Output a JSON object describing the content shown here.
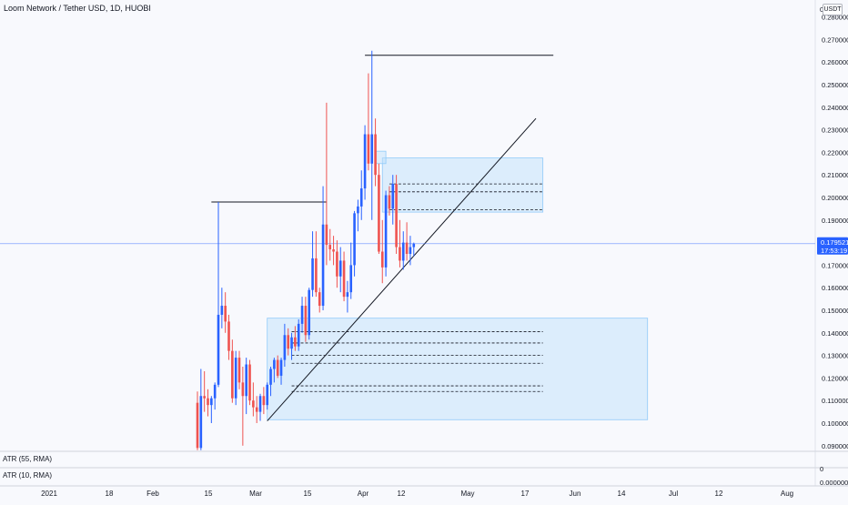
{
  "header": {
    "title": "Loom Network / Tether USD, 1D, HUOBI",
    "unit": "USDT"
  },
  "indicators": [
    {
      "label": "ATR (55, RMA)"
    },
    {
      "label": "ATR (10, RMA)"
    }
  ],
  "price_axis": {
    "labels": [
      "0.280000",
      "0.270000",
      "0.260000",
      "0.250000",
      "0.240000",
      "0.230000",
      "0.220000",
      "0.210000",
      "0.200000",
      "0.190000",
      "0.170000",
      "0.160000",
      "0.150000",
      "0.140000",
      "0.130000",
      "0.120000",
      "0.110000",
      "0.100000",
      "0.090000"
    ],
    "top_zero": "0",
    "sub_zero": "0",
    "sub_bottom": "0.000000"
  },
  "last_price": {
    "value": 0.179521,
    "label": "0.179521",
    "countdown": "17:53:19"
  },
  "time_axis": {
    "labels": [
      "2021",
      "18",
      "Feb",
      "15",
      "Mar",
      "15",
      "Apr",
      "12",
      "May",
      "17",
      "Jun",
      "14",
      "Jul",
      "12",
      "Aug"
    ]
  },
  "colors": {
    "up": "#2962ff",
    "down": "#ef5350",
    "zone_fill": "#bbdefb",
    "zone_border": "#90caf9",
    "price_badge": "#2962ff",
    "line": "#131722"
  },
  "chart_data": {
    "type": "candlestick",
    "title": "Loom Network / Tether USD, 1D, HUOBI",
    "ylim": [
      0.0875,
      0.2875
    ],
    "x_start": "2021-02-09",
    "candles": [
      {
        "date": "2021-02-09",
        "open": 0.109,
        "high": 0.114,
        "low": 0.088,
        "close": 0.089
      },
      {
        "date": "2021-02-10",
        "open": 0.089,
        "high": 0.124,
        "low": 0.088,
        "close": 0.112
      },
      {
        "date": "2021-02-11",
        "open": 0.112,
        "high": 0.123,
        "low": 0.105,
        "close": 0.111
      },
      {
        "date": "2021-02-12",
        "open": 0.111,
        "high": 0.115,
        "low": 0.103,
        "close": 0.108
      },
      {
        "date": "2021-02-13",
        "open": 0.108,
        "high": 0.112,
        "low": 0.1,
        "close": 0.111
      },
      {
        "date": "2021-02-14",
        "open": 0.111,
        "high": 0.118,
        "low": 0.106,
        "close": 0.117
      },
      {
        "date": "2021-02-15",
        "open": 0.117,
        "high": 0.198,
        "low": 0.116,
        "close": 0.148
      },
      {
        "date": "2021-02-16",
        "open": 0.148,
        "high": 0.16,
        "low": 0.142,
        "close": 0.152
      },
      {
        "date": "2021-02-17",
        "open": 0.152,
        "high": 0.158,
        "low": 0.14,
        "close": 0.145
      },
      {
        "date": "2021-02-18",
        "open": 0.145,
        "high": 0.148,
        "low": 0.128,
        "close": 0.132
      },
      {
        "date": "2021-02-19",
        "open": 0.132,
        "high": 0.137,
        "low": 0.109,
        "close": 0.111
      },
      {
        "date": "2021-02-20",
        "open": 0.111,
        "high": 0.132,
        "low": 0.108,
        "close": 0.129
      },
      {
        "date": "2021-02-21",
        "open": 0.129,
        "high": 0.132,
        "low": 0.115,
        "close": 0.118
      },
      {
        "date": "2021-02-22",
        "open": 0.118,
        "high": 0.125,
        "low": 0.09,
        "close": 0.112
      },
      {
        "date": "2021-02-23",
        "open": 0.112,
        "high": 0.129,
        "low": 0.104,
        "close": 0.126
      },
      {
        "date": "2021-02-24",
        "open": 0.126,
        "high": 0.128,
        "low": 0.108,
        "close": 0.11
      },
      {
        "date": "2021-02-25",
        "open": 0.11,
        "high": 0.118,
        "low": 0.103,
        "close": 0.107
      },
      {
        "date": "2021-02-26",
        "open": 0.107,
        "high": 0.112,
        "low": 0.1,
        "close": 0.105
      },
      {
        "date": "2021-02-27",
        "open": 0.105,
        "high": 0.113,
        "low": 0.101,
        "close": 0.112
      },
      {
        "date": "2021-02-28",
        "open": 0.112,
        "high": 0.116,
        "low": 0.104,
        "close": 0.108
      },
      {
        "date": "2021-03-01",
        "open": 0.108,
        "high": 0.118,
        "low": 0.106,
        "close": 0.117
      },
      {
        "date": "2021-03-02",
        "open": 0.117,
        "high": 0.125,
        "low": 0.112,
        "close": 0.124
      },
      {
        "date": "2021-03-03",
        "open": 0.124,
        "high": 0.129,
        "low": 0.118,
        "close": 0.128
      },
      {
        "date": "2021-03-04",
        "open": 0.128,
        "high": 0.13,
        "low": 0.12,
        "close": 0.121
      },
      {
        "date": "2021-03-05",
        "open": 0.121,
        "high": 0.129,
        "low": 0.117,
        "close": 0.128
      },
      {
        "date": "2021-03-06",
        "open": 0.128,
        "high": 0.144,
        "low": 0.125,
        "close": 0.139
      },
      {
        "date": "2021-03-07",
        "open": 0.139,
        "high": 0.142,
        "low": 0.13,
        "close": 0.133
      },
      {
        "date": "2021-03-08",
        "open": 0.133,
        "high": 0.14,
        "low": 0.128,
        "close": 0.138
      },
      {
        "date": "2021-03-09",
        "open": 0.138,
        "high": 0.143,
        "low": 0.132,
        "close": 0.134
      },
      {
        "date": "2021-03-10",
        "open": 0.134,
        "high": 0.146,
        "low": 0.132,
        "close": 0.144
      },
      {
        "date": "2021-03-11",
        "open": 0.144,
        "high": 0.156,
        "low": 0.14,
        "close": 0.152
      },
      {
        "date": "2021-03-12",
        "open": 0.152,
        "high": 0.156,
        "low": 0.136,
        "close": 0.139
      },
      {
        "date": "2021-03-13",
        "open": 0.139,
        "high": 0.16,
        "low": 0.137,
        "close": 0.159
      },
      {
        "date": "2021-03-14",
        "open": 0.159,
        "high": 0.185,
        "low": 0.156,
        "close": 0.173
      },
      {
        "date": "2021-03-15",
        "open": 0.173,
        "high": 0.185,
        "low": 0.156,
        "close": 0.158
      },
      {
        "date": "2021-03-16",
        "open": 0.158,
        "high": 0.16,
        "low": 0.149,
        "close": 0.152
      },
      {
        "date": "2021-03-17",
        "open": 0.152,
        "high": 0.205,
        "low": 0.15,
        "close": 0.188
      },
      {
        "date": "2021-03-18",
        "open": 0.188,
        "high": 0.242,
        "low": 0.17,
        "close": 0.179
      },
      {
        "date": "2021-03-19",
        "open": 0.179,
        "high": 0.186,
        "low": 0.172,
        "close": 0.177
      },
      {
        "date": "2021-03-20",
        "open": 0.177,
        "high": 0.183,
        "low": 0.17,
        "close": 0.176
      },
      {
        "date": "2021-03-21",
        "open": 0.176,
        "high": 0.181,
        "low": 0.16,
        "close": 0.165
      },
      {
        "date": "2021-03-22",
        "open": 0.165,
        "high": 0.178,
        "low": 0.158,
        "close": 0.172
      },
      {
        "date": "2021-03-23",
        "open": 0.172,
        "high": 0.176,
        "low": 0.154,
        "close": 0.156
      },
      {
        "date": "2021-03-24",
        "open": 0.156,
        "high": 0.163,
        "low": 0.149,
        "close": 0.158
      },
      {
        "date": "2021-03-25",
        "open": 0.158,
        "high": 0.18,
        "low": 0.155,
        "close": 0.17
      },
      {
        "date": "2021-03-26",
        "open": 0.17,
        "high": 0.194,
        "low": 0.165,
        "close": 0.193
      },
      {
        "date": "2021-03-27",
        "open": 0.193,
        "high": 0.199,
        "low": 0.185,
        "close": 0.196
      },
      {
        "date": "2021-03-28",
        "open": 0.196,
        "high": 0.212,
        "low": 0.19,
        "close": 0.204
      },
      {
        "date": "2021-03-29",
        "open": 0.204,
        "high": 0.232,
        "low": 0.199,
        "close": 0.228
      },
      {
        "date": "2021-03-30",
        "open": 0.228,
        "high": 0.255,
        "low": 0.212,
        "close": 0.215
      },
      {
        "date": "2021-03-31",
        "open": 0.215,
        "high": 0.265,
        "low": 0.19,
        "close": 0.228
      },
      {
        "date": "2021-04-01",
        "open": 0.228,
        "high": 0.235,
        "low": 0.205,
        "close": 0.21
      },
      {
        "date": "2021-04-02",
        "open": 0.21,
        "high": 0.215,
        "low": 0.175,
        "close": 0.176
      },
      {
        "date": "2021-04-03",
        "open": 0.176,
        "high": 0.19,
        "low": 0.162,
        "close": 0.169
      },
      {
        "date": "2021-04-04",
        "open": 0.169,
        "high": 0.203,
        "low": 0.165,
        "close": 0.201
      },
      {
        "date": "2021-04-05",
        "open": 0.201,
        "high": 0.205,
        "low": 0.192,
        "close": 0.195
      },
      {
        "date": "2021-04-06",
        "open": 0.195,
        "high": 0.21,
        "low": 0.188,
        "close": 0.206
      },
      {
        "date": "2021-04-07",
        "open": 0.206,
        "high": 0.21,
        "low": 0.175,
        "close": 0.178
      },
      {
        "date": "2021-04-08",
        "open": 0.178,
        "high": 0.19,
        "low": 0.169,
        "close": 0.172
      },
      {
        "date": "2021-04-09",
        "open": 0.172,
        "high": 0.185,
        "low": 0.168,
        "close": 0.18
      },
      {
        "date": "2021-04-10",
        "open": 0.18,
        "high": 0.189,
        "low": 0.172,
        "close": 0.175
      },
      {
        "date": "2021-04-11",
        "open": 0.175,
        "high": 0.183,
        "low": 0.17,
        "close": 0.178
      },
      {
        "date": "2021-04-12",
        "open": 0.178,
        "high": 0.18,
        "low": 0.174,
        "close": 0.1795
      }
    ],
    "horizontal_lines": [
      {
        "price": 0.263,
        "from": "2021-03-29",
        "to": "2021-05-22"
      },
      {
        "price": 0.198,
        "from": "2021-02-13",
        "to": "2021-03-18"
      }
    ],
    "trend_line": {
      "from": {
        "date": "2021-03-01",
        "price": 0.101
      },
      "to": {
        "date": "2021-05-17",
        "price": 0.235
      }
    },
    "zones": [
      {
        "from": "2021-04-03",
        "to": "2021-05-19",
        "top": 0.2175,
        "bottom": 0.1935
      },
      {
        "from": "2021-04-01",
        "to": "2021-04-04",
        "top": 0.2205,
        "bottom": 0.215
      },
      {
        "from": "2021-03-01",
        "to": "2021-06-18",
        "top": 0.1465,
        "bottom": 0.1015
      }
    ],
    "dashed_levels": [
      {
        "price": 0.206,
        "from": "2021-04-05",
        "to": "2021-05-19"
      },
      {
        "price": 0.2025,
        "from": "2021-04-05",
        "to": "2021-05-19"
      },
      {
        "price": 0.1945,
        "from": "2021-04-05",
        "to": "2021-05-19"
      },
      {
        "price": 0.1405,
        "from": "2021-03-08",
        "to": "2021-05-19"
      },
      {
        "price": 0.1355,
        "from": "2021-03-08",
        "to": "2021-05-19"
      },
      {
        "price": 0.13,
        "from": "2021-03-08",
        "to": "2021-05-19"
      },
      {
        "price": 0.1265,
        "from": "2021-03-08",
        "to": "2021-05-19"
      },
      {
        "price": 0.1165,
        "from": "2021-03-08",
        "to": "2021-05-19"
      },
      {
        "price": 0.114,
        "from": "2021-03-08",
        "to": "2021-05-19"
      }
    ]
  }
}
